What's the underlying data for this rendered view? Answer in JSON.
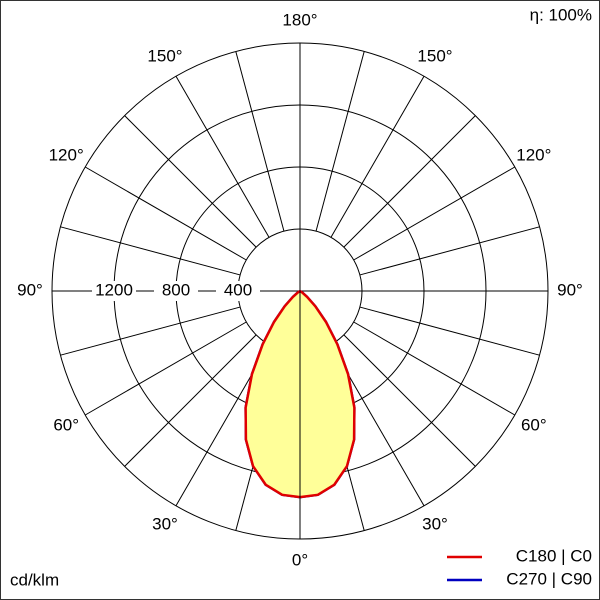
{
  "chart_data": {
    "type": "polar",
    "efficiency_label": "η: 100%",
    "unit_label": "cd/klm",
    "angles": [
      0,
      5,
      10,
      15,
      20,
      25,
      30,
      35,
      40,
      45,
      50,
      55,
      60,
      65,
      70,
      75,
      80,
      85,
      90
    ],
    "series": [
      {
        "name": "C270 | C90",
        "color": "#0000c0",
        "values": [
          1330,
          1320,
          1270,
          1170,
          1020,
          830,
          620,
          420,
          260,
          140,
          60,
          20,
          0,
          0,
          0,
          0,
          0,
          0,
          0
        ]
      },
      {
        "name": "C180 | C0",
        "color": "#e00000",
        "values": [
          1330,
          1320,
          1270,
          1170,
          1020,
          830,
          620,
          420,
          260,
          140,
          60,
          20,
          0,
          0,
          0,
          0,
          0,
          0,
          0
        ]
      }
    ],
    "fill_color": "#ffff99",
    "rlim": [
      0,
      1600
    ],
    "rticks": [
      400,
      800,
      1200
    ],
    "angle_ticks": [
      {
        "value": 0,
        "label": "0°"
      },
      {
        "value": 30,
        "label": "30°"
      },
      {
        "value": 60,
        "label": "60°"
      },
      {
        "value": 90,
        "label": "90°"
      },
      {
        "value": 120,
        "label": "120°"
      },
      {
        "value": 150,
        "label": "150°"
      },
      {
        "value": 180,
        "label": "180°"
      }
    ]
  }
}
